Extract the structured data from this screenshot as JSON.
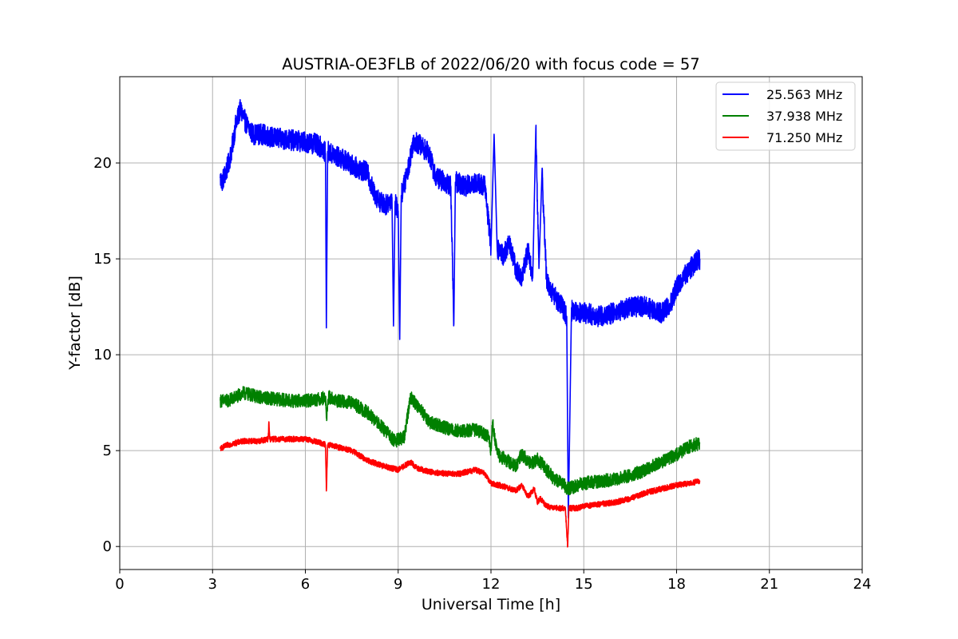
{
  "chart_data": {
    "type": "line",
    "title": "AUSTRIA-OE3FLB of 2022/06/20 with focus code = 57",
    "xlabel": "Universal Time [h]",
    "ylabel": "Y-factor [dB]",
    "xlim": [
      0,
      24
    ],
    "ylim": [
      -1.2,
      24.5
    ],
    "xticks": [
      0,
      3,
      6,
      9,
      12,
      15,
      18,
      21,
      24
    ],
    "yticks": [
      0,
      5,
      10,
      15,
      20
    ],
    "grid": true,
    "legend_position": "top-right",
    "series": [
      {
        "name": "25.563 MHz",
        "color": "#0000ff",
        "x": [
          3.25,
          3.3,
          3.45,
          3.6,
          3.75,
          3.9,
          4.1,
          4.3,
          4.6,
          5.0,
          5.5,
          6.0,
          6.3,
          6.55,
          6.65,
          6.68,
          6.72,
          6.8,
          7.2,
          7.6,
          8.0,
          8.2,
          8.4,
          8.6,
          8.8,
          8.85,
          8.9,
          9.0,
          9.05,
          9.1,
          9.3,
          9.5,
          9.8,
          10.0,
          10.2,
          10.5,
          10.7,
          10.8,
          10.85,
          10.9,
          11.2,
          11.5,
          11.8,
          11.95,
          12.0,
          12.1,
          12.2,
          12.4,
          12.6,
          12.8,
          13.0,
          13.2,
          13.35,
          13.45,
          13.55,
          13.65,
          13.8,
          14.0,
          14.3,
          14.45,
          14.5,
          14.6,
          15.0,
          15.5,
          16.0,
          16.5,
          17.0,
          17.5,
          17.8,
          18.0,
          18.3,
          18.6,
          18.75
        ],
        "values": [
          19.2,
          19.0,
          19.6,
          20.5,
          22.0,
          22.8,
          22.0,
          21.5,
          21.5,
          21.3,
          21.2,
          21.1,
          21.0,
          20.8,
          20.5,
          11.4,
          20.6,
          20.5,
          20.2,
          19.8,
          19.5,
          18.5,
          18.0,
          17.8,
          18.2,
          11.5,
          18.0,
          17.5,
          10.8,
          18.3,
          19.5,
          21.2,
          20.8,
          20.5,
          19.3,
          19.0,
          18.8,
          11.6,
          19.0,
          19.0,
          18.8,
          19.0,
          18.8,
          16.5,
          15.5,
          21.5,
          15.5,
          15.2,
          15.8,
          14.5,
          14.0,
          15.5,
          14.0,
          21.8,
          14.5,
          19.5,
          13.8,
          13.2,
          12.5,
          12.0,
          1.5,
          12.3,
          12.2,
          12.0,
          12.2,
          12.5,
          12.5,
          12.2,
          12.6,
          13.5,
          14.2,
          14.8,
          15.0
        ]
      },
      {
        "name": "37.938 MHz",
        "color": "#008000",
        "x": [
          3.25,
          3.5,
          4.0,
          4.5,
          5.0,
          5.5,
          6.0,
          6.5,
          6.65,
          6.68,
          6.75,
          7.0,
          7.5,
          8.0,
          8.3,
          8.6,
          8.9,
          9.2,
          9.4,
          9.5,
          9.7,
          10.0,
          10.5,
          11.0,
          11.5,
          11.9,
          12.0,
          12.05,
          12.2,
          12.5,
          12.8,
          13.0,
          13.3,
          13.5,
          13.7,
          14.0,
          14.3,
          14.5,
          14.8,
          15.0,
          15.5,
          16.0,
          16.5,
          17.0,
          17.5,
          18.0,
          18.4,
          18.75
        ],
        "values": [
          7.6,
          7.6,
          8.0,
          7.8,
          7.7,
          7.6,
          7.6,
          7.7,
          7.8,
          6.7,
          7.8,
          7.6,
          7.5,
          7.0,
          6.5,
          6.0,
          5.5,
          5.7,
          7.8,
          7.6,
          7.2,
          6.5,
          6.2,
          6.0,
          6.1,
          5.8,
          5.0,
          6.5,
          4.8,
          4.5,
          4.2,
          4.8,
          4.3,
          4.6,
          4.2,
          3.6,
          3.3,
          3.0,
          3.2,
          3.3,
          3.4,
          3.5,
          3.7,
          4.0,
          4.4,
          4.8,
          5.2,
          5.4
        ]
      },
      {
        "name": "71.250 MHz",
        "color": "#ff0000",
        "x": [
          3.25,
          3.5,
          4.0,
          4.5,
          4.8,
          4.82,
          4.85,
          5.0,
          5.5,
          6.0,
          6.5,
          6.65,
          6.68,
          6.72,
          7.0,
          7.5,
          8.0,
          8.5,
          9.0,
          9.2,
          9.4,
          9.6,
          10.0,
          10.5,
          11.0,
          11.5,
          11.8,
          12.0,
          12.5,
          12.8,
          13.0,
          13.2,
          13.4,
          13.5,
          13.6,
          13.8,
          14.0,
          14.4,
          14.48,
          14.52,
          14.8,
          15.0,
          15.5,
          16.0,
          16.5,
          17.0,
          17.5,
          18.0,
          18.4,
          18.75
        ],
        "values": [
          5.1,
          5.3,
          5.5,
          5.5,
          5.6,
          6.5,
          5.6,
          5.6,
          5.6,
          5.6,
          5.4,
          5.3,
          2.9,
          5.3,
          5.2,
          5.0,
          4.5,
          4.2,
          4.0,
          4.2,
          4.4,
          4.1,
          3.9,
          3.8,
          3.8,
          4.0,
          3.8,
          3.3,
          3.1,
          2.9,
          3.2,
          2.6,
          3.0,
          2.3,
          2.5,
          2.1,
          2.0,
          2.0,
          0.0,
          2.0,
          2.0,
          2.1,
          2.2,
          2.3,
          2.5,
          2.8,
          3.0,
          3.2,
          3.3,
          3.4
        ]
      }
    ]
  }
}
